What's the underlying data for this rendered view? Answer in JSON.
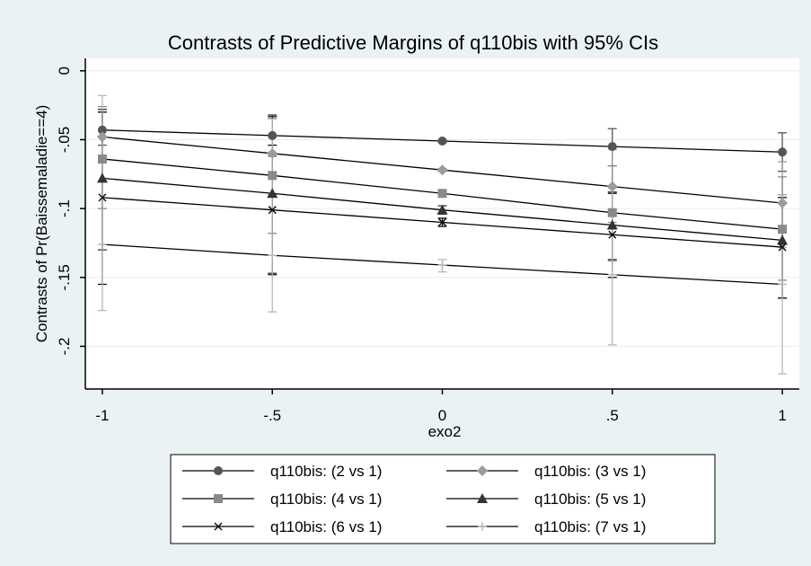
{
  "chart_data": {
    "type": "line",
    "title": "Contrasts of Predictive Margins of q110bis with 95% CIs",
    "xlabel": "exo2",
    "ylabel": "Contrasts of Pr(Baissemaladie==4)",
    "x": [
      -1,
      -0.5,
      0,
      0.5,
      1
    ],
    "x_ticks": [
      -1,
      -0.5,
      0,
      0.5,
      1
    ],
    "x_tick_labels": [
      "-1",
      "-.5",
      "0",
      ".5",
      "1"
    ],
    "xlim": [
      -1.05,
      1.05
    ],
    "y_ticks": [
      0,
      -0.05,
      -0.1,
      -0.15,
      -0.2
    ],
    "y_tick_labels": [
      "0",
      "-.05",
      "-.1",
      "-.15",
      "-.2"
    ],
    "ylim": [
      -0.231,
      0.009
    ],
    "grid": true,
    "legend_position": "bottom",
    "series": [
      {
        "name": "q110bis: (2 vs 1)",
        "color": "#555555",
        "marker": "circle",
        "values": [
          -0.043,
          -0.047,
          -0.051,
          -0.055,
          -0.059
        ],
        "ci_low": [
          -0.054,
          -0.062,
          -0.052,
          -0.069,
          -0.073
        ],
        "ci_high": [
          -0.03,
          -0.032,
          -0.05,
          -0.042,
          -0.045
        ]
      },
      {
        "name": "q110bis: (3 vs 1)",
        "color": "#9c9c9c",
        "marker": "diamond",
        "values": [
          -0.048,
          -0.06,
          -0.072,
          -0.084,
          -0.096
        ],
        "ci_low": [
          -0.067,
          -0.09,
          -0.073,
          -0.11,
          -0.128
        ],
        "ci_high": [
          -0.028,
          -0.034,
          -0.071,
          -0.057,
          -0.066
        ]
      },
      {
        "name": "q110bis: (4 vs 1)",
        "color": "#8a8a8a",
        "marker": "square",
        "values": [
          -0.064,
          -0.076,
          -0.089,
          -0.103,
          -0.115
        ],
        "ci_low": [
          -0.1,
          -0.118,
          -0.091,
          -0.138,
          -0.152
        ],
        "ci_high": [
          -0.026,
          -0.034,
          -0.087,
          -0.069,
          -0.077
        ]
      },
      {
        "name": "q110bis: (5 vs 1)",
        "color": "#333333",
        "marker": "triangle",
        "values": [
          -0.078,
          -0.089,
          -0.101,
          -0.112,
          -0.123
        ],
        "ci_low": [
          -0.13,
          -0.147,
          -0.104,
          -0.137,
          -0.165
        ],
        "ci_high": [
          -0.028,
          -0.033,
          -0.098,
          -0.088,
          -0.09
        ]
      },
      {
        "name": "q110bis: (6 vs 1)",
        "color": "#111111",
        "marker": "x",
        "values": [
          -0.092,
          -0.101,
          -0.11,
          -0.119,
          -0.128
        ],
        "ci_low": [
          -0.155,
          -0.148,
          -0.113,
          -0.15,
          -0.165
        ],
        "ci_high": [
          -0.03,
          -0.054,
          -0.107,
          -0.089,
          -0.092
        ]
      },
      {
        "name": "q110bis: (7 vs 1)",
        "color": "#b8b8b8",
        "marker": "plus",
        "values": [
          -0.126,
          -0.134,
          -0.141,
          -0.148,
          -0.155
        ],
        "ci_low": [
          -0.174,
          -0.175,
          -0.146,
          -0.199,
          -0.22
        ],
        "ci_high": [
          -0.018,
          -0.035,
          -0.137,
          -0.085,
          -0.09
        ]
      }
    ]
  }
}
